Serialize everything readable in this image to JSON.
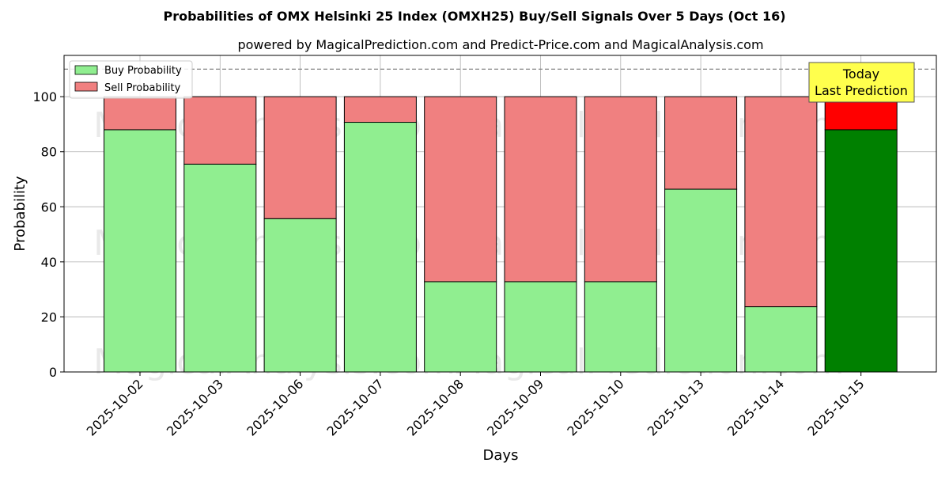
{
  "chart_data": {
    "type": "bar",
    "title": "Probabilities of OMX Helsinki 25 Index (OMXH25) Buy/Sell Signals Over 5 Days (Oct 16)",
    "subtitle": "powered by MagicalPrediction.com and Predict-Price.com and MagicalAnalysis.com",
    "xlabel": "Days",
    "ylabel": "Probability",
    "ylim": [
      0,
      115
    ],
    "yticks": [
      0,
      20,
      40,
      60,
      80,
      100
    ],
    "reference_line": 110,
    "grid": true,
    "stacked": true,
    "legend_position": "top-left",
    "categories": [
      "2025-10-02",
      "2025-10-03",
      "2025-10-06",
      "2025-10-07",
      "2025-10-08",
      "2025-10-09",
      "2025-10-10",
      "2025-10-13",
      "2025-10-14",
      "2025-10-15"
    ],
    "series": [
      {
        "name": "Buy Probability",
        "values": [
          88,
          75.5,
          55.7,
          90.7,
          32.8,
          32.8,
          32.8,
          66.4,
          23.7,
          88
        ],
        "color": "#90ee90",
        "highlight_color": "#008000"
      },
      {
        "name": "Sell Probability",
        "values": [
          12,
          24.5,
          44.3,
          9.3,
          67.2,
          67.2,
          67.2,
          33.6,
          76.3,
          12
        ],
        "color": "#f08080",
        "highlight_color": "#ff0000"
      }
    ],
    "highlight_index": 9,
    "annotation": {
      "line1": "Today",
      "line2": "Last Prediction",
      "bg_color": "#ffff4d"
    },
    "watermarks": [
      "MagicalAnalysis.com",
      "MagicalPrediction.com"
    ]
  }
}
